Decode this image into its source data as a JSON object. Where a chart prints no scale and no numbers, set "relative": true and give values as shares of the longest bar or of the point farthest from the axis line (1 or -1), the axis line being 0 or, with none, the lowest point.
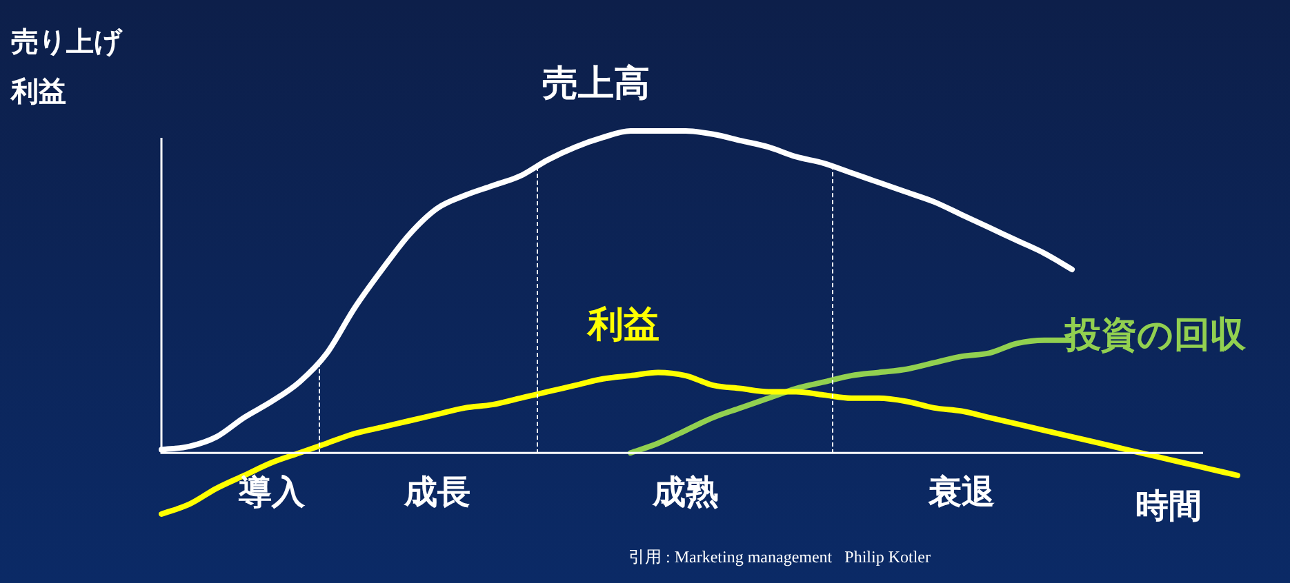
{
  "chart_data": {
    "type": "line",
    "relative": true,
    "ylabel": "売り上げ利益",
    "xlabel": "時間",
    "categories": [
      null,
      null,
      null,
      null,
      "導入",
      null,
      null,
      null,
      null,
      null,
      "成長",
      null,
      null,
      null,
      null,
      null,
      null,
      null,
      null,
      "成熟",
      null,
      null,
      null,
      null,
      null,
      null,
      null,
      null,
      null,
      "衰退",
      null,
      null,
      null,
      null,
      null,
      null,
      null,
      null,
      null,
      null
    ],
    "series": [
      {
        "name": "売上高",
        "color": "#ffffff",
        "values": [
          0.01,
          0.02,
          0.05,
          0.11,
          0.16,
          0.22,
          0.31,
          0.45,
          0.57,
          0.68,
          0.76,
          0.8,
          0.83,
          0.86,
          0.91,
          0.95,
          0.98,
          1,
          1,
          1,
          0.99,
          0.97,
          0.95,
          0.92,
          0.9,
          0.87,
          0.84,
          0.81,
          0.78,
          0.74,
          0.7,
          0.66,
          0.62,
          0.57,
          null,
          null,
          null,
          null,
          null,
          null
        ]
      },
      {
        "name": "利益",
        "color": "#ffff00",
        "values": [
          -0.19,
          -0.16,
          -0.11,
          -0.07,
          -0.03,
          0,
          0.03,
          0.06,
          0.08,
          0.1,
          0.12,
          0.14,
          0.15,
          0.17,
          0.19,
          0.21,
          0.23,
          0.24,
          0.25,
          0.24,
          0.21,
          0.2,
          0.19,
          0.19,
          0.18,
          0.17,
          0.17,
          0.16,
          0.14,
          0.13,
          0.11,
          0.09,
          0.07,
          0.05,
          0.03,
          0.01,
          -0.01,
          -0.03,
          -0.05,
          -0.07
        ]
      },
      {
        "name": "投資の回収",
        "color": "#92d050",
        "values": [
          null,
          null,
          null,
          null,
          null,
          null,
          null,
          null,
          null,
          null,
          null,
          null,
          null,
          null,
          null,
          null,
          null,
          0,
          0.03,
          0.07,
          0.11,
          0.14,
          0.17,
          0.2,
          0.22,
          0.24,
          0.25,
          0.26,
          0.28,
          0.3,
          0.31,
          0.34,
          0.35,
          0.35,
          null,
          null,
          null,
          null,
          null,
          null
        ]
      }
    ],
    "legend": false,
    "marker": "none",
    "line_style": "solid",
    "annotations": [
      "引用 : Marketing management   Philip Kotler"
    ]
  }
}
